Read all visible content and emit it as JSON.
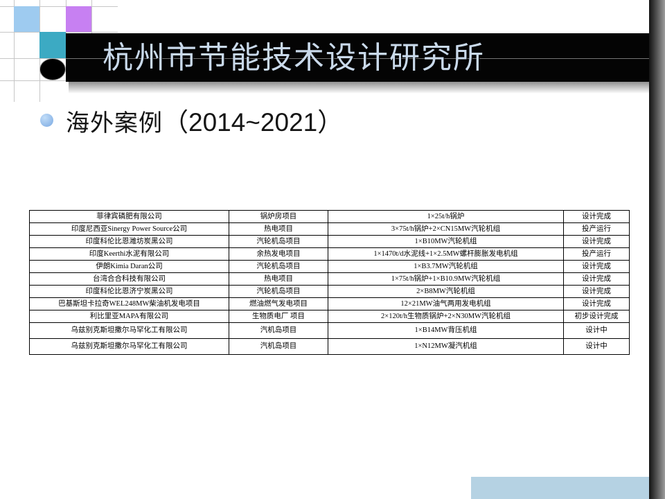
{
  "slide": {
    "title": "杭州市节能技术设计研究所",
    "bullet": {
      "label": "海外案例",
      "range": "（2014~2021）"
    }
  },
  "cases_table": {
    "columns": [
      "company",
      "project_type",
      "equipment",
      "status"
    ],
    "rows": [
      [
        "菲律宾磷肥有限公司",
        "锅炉房项目",
        "1×25t/h锅炉",
        "设计完成"
      ],
      [
        "印度尼西亚Sinergy Power Source公司",
        "热电项目",
        "3×75t/h锅炉+2×CN15MW汽轮机组",
        "投产运行"
      ],
      [
        "印度科伦比恩潍坊炭黑公司",
        "汽轮机岛项目",
        "1×B10MW汽轮机组",
        "设计完成"
      ],
      [
        "印度Keerthi水泥有限公司",
        "余热发电项目",
        "1×1470t/d水泥线+1×2.5MW螺杆膨胀发电机组",
        "投产运行"
      ],
      [
        "伊朗Kimia Daran公司",
        "汽轮机岛项目",
        "1×B3.7MW汽轮机组",
        "设计完成"
      ],
      [
        "台湾合合科技有限公司",
        "热电项目",
        "1×75t/h锅炉+1×B10.9MW汽轮机组",
        "设计完成"
      ],
      [
        "印度科伦比恩济宁炭黑公司",
        "汽轮机岛项目",
        "2×B8MW汽轮机组",
        "设计完成"
      ],
      [
        "巴基斯坦卡拉奇WEL248MW柴油机发电项目",
        "燃油燃气发电项目",
        "12×21MW油气两用发电机组",
        "设计完成"
      ],
      [
        "利比里亚MAPA有限公司",
        "生物质电厂 项目",
        "2×120t/h生物质锅炉+2×N30MW汽轮机组",
        "初步设计完成"
      ],
      [
        "乌兹别克斯坦撒尔马罕化工有限公司",
        "汽机岛项目",
        "1×B14MW背压机组",
        "设计中"
      ],
      [
        "乌兹别克斯坦撒尔马罕化工有限公司",
        "汽机岛项目",
        "1×N12MW凝汽机组",
        "设计中"
      ]
    ]
  },
  "icons": {
    "bullet": "circle-bullet"
  },
  "colors": {
    "square_light_blue": "#9ecbf0",
    "square_purple": "#c780f2",
    "square_teal": "#3caac3",
    "banner_black": "#040404",
    "title_text": "#c9d9ea",
    "bullet_ball": "#8ab4e8",
    "bottom_bar_blue": "#b5d2e3",
    "table_border": "#000000"
  }
}
